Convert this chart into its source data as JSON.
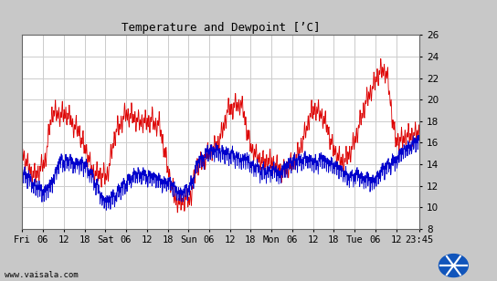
{
  "title": "Temperature and Dewpoint [’C]",
  "ylim": [
    8,
    26
  ],
  "yticks": [
    8,
    10,
    12,
    14,
    16,
    18,
    20,
    22,
    24,
    26
  ],
  "bg_color": "#c8c8c8",
  "plot_bg_color": "#ffffff",
  "temp_color": "#dd0000",
  "dew_color": "#0000cc",
  "watermark": "www.vaisala.com",
  "xtick_labels": [
    "Fri",
    "06",
    "12",
    "18",
    "Sat",
    "06",
    "12",
    "18",
    "Sun",
    "06",
    "12",
    "18",
    "Mon",
    "06",
    "12",
    "18",
    "Tue",
    "06",
    "12",
    "23:45"
  ],
  "xtick_positions": [
    0,
    6,
    12,
    18,
    24,
    30,
    36,
    42,
    48,
    54,
    60,
    66,
    72,
    78,
    84,
    90,
    96,
    102,
    108,
    114.75
  ],
  "n_points": 1150,
  "duration_hours": 114.75
}
